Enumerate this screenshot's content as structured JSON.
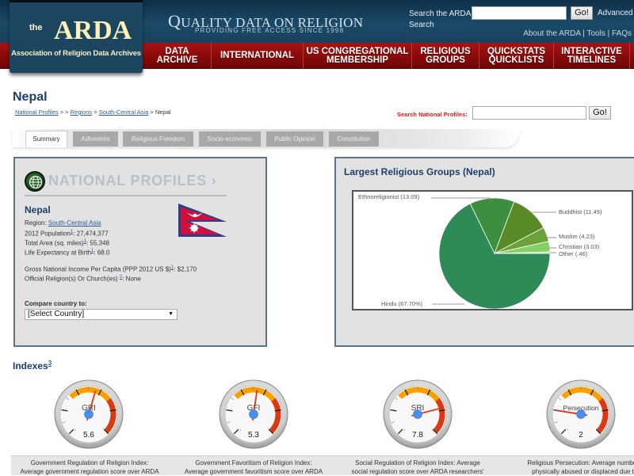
{
  "header": {
    "logo": {
      "the": "the",
      "name": "ARDA",
      "subtitle": "Association of Religion Data Archives"
    },
    "tagline": {
      "first_letter": "Q",
      "rest": "UALITY DATA ON RELIGION",
      "sub": "PROVIDING FREE ACCESS SINCE 1998"
    },
    "search": {
      "label": "Search the ARDA",
      "label_line2": "Search",
      "value": "",
      "go": "Go!",
      "advanced": "Advanced"
    },
    "top_links": [
      "About the ARDA",
      "Tools",
      "FAQs"
    ],
    "separator": " | ",
    "nav": [
      {
        "line1": "DATA",
        "line2": "ARCHIVE"
      },
      {
        "line1": "INTERNATIONAL",
        "line2": ""
      },
      {
        "line1": "US CONGREGATIONAL",
        "line2": "MEMBERSHIP"
      },
      {
        "line1": "RELIGIOUS",
        "line2": "GROUPS"
      },
      {
        "line1": "QUICKSTATS",
        "line2": "QUICKLISTS"
      },
      {
        "line1": "INTERACTIVE",
        "line2": "TIMELINES"
      }
    ]
  },
  "page": {
    "title": "Nepal",
    "breadcrumb": {
      "items": [
        "National Profiles",
        "Regions",
        "South-Central Asia"
      ],
      "current": "Nepal",
      "sep1": " > > ",
      "sep": " > "
    },
    "np_search": {
      "label": "Search National Profiles:",
      "value": "",
      "go": "Go!"
    },
    "tabs": [
      "Summary",
      "Adherents",
      "Religious Freedom",
      "Socio-economic",
      "Public Opinion",
      "Constitution"
    ],
    "active_tab": "Summary"
  },
  "profile": {
    "header": "NATIONAL PROFILES",
    "header_arrow": "›",
    "country": "Nepal",
    "region_label": "Region: ",
    "region": "South-Central Asia",
    "population_label": "2012 Population",
    "population": ": 27,474,377",
    "area_label": "Total Area (sq. miles)",
    "area": ": 55,348",
    "life_label": "Life Expectancy at Birth",
    "life": ": 68.0",
    "gni_label": "Gross National Income Per Capita (PPP 2012 US $)",
    "gni": ": $2,170",
    "official_label": "Official Religion(s) Or Church(es) ",
    "official": ": None",
    "footnote1": "1",
    "footnote2": "2",
    "compare_label": "Compare country to:",
    "compare_value": "[Select Country]",
    "compare_arrow": "▼"
  },
  "chart_panel": {
    "title": "Largest Religious Groups (Nepal)"
  },
  "chart_data": {
    "type": "pie",
    "title": "Largest Religious Groups (Nepal)",
    "categories": [
      "Hindu",
      "Ethnoreligionist",
      "Buddhist",
      "Muslim",
      "Christian",
      "Other"
    ],
    "values": [
      67.7,
      13.09,
      11.49,
      4.23,
      3.03,
      0.46
    ],
    "labels": [
      "Hindu (67.70%)",
      "Ethnoreligionist (13.09)",
      "Buddhist (11.49)",
      "Muslim (4.23)",
      "Christian (3.03)",
      "Other (.46)"
    ],
    "colors": [
      "#2e8b57",
      "#3b8f3f",
      "#5a8a26",
      "#6aa23a",
      "#86cf66",
      "#c9eebb"
    ]
  },
  "indexes": {
    "title": "Indexes",
    "footnote": "3",
    "gauges": [
      {
        "label": "GRI",
        "value": "5.6",
        "num": 5.6,
        "caption1": "Government Regulation of Religion Index:",
        "caption2": "Average government regulation score over ARDA"
      },
      {
        "label": "GFI",
        "value": "5.3",
        "num": 5.3,
        "caption1": "Government Favoritism of Religion Index:",
        "caption2": "Average government favoritism score over ARDA"
      },
      {
        "label": "SRI",
        "value": "7.8",
        "num": 7.8,
        "caption1": "Social Regulation of Religion Index: Average",
        "caption2": "social regulation score over ARDA researchers'"
      },
      {
        "label": "Persecution",
        "value": "2",
        "num": 2,
        "caption1": "Religious Persecution: Average number of",
        "caption2": "physically abused or displaced due to t"
      }
    ],
    "scale_min": "1",
    "scale_max": "10"
  }
}
